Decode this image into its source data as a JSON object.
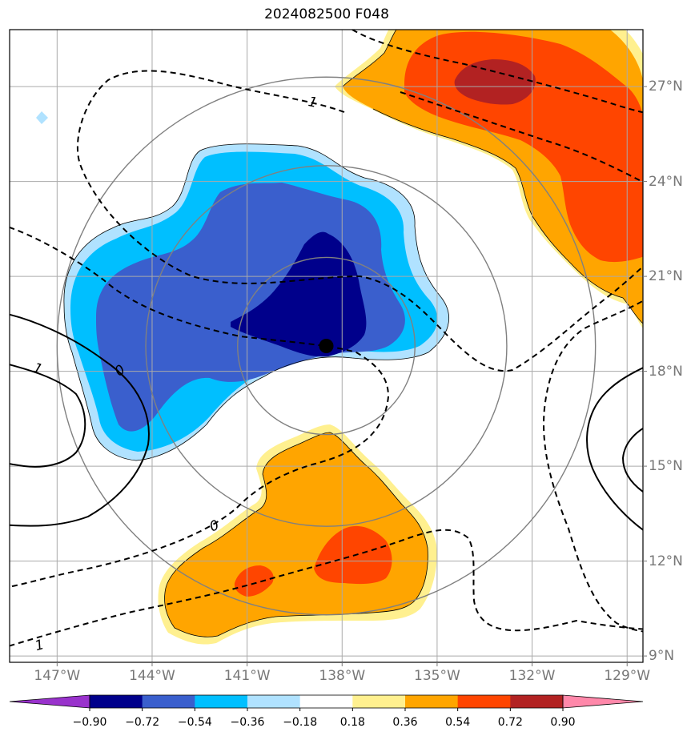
{
  "title": "2024082500 F048",
  "map": {
    "lon_range": [
      -148.5,
      -128.5
    ],
    "lat_range": [
      8.8,
      28.8
    ],
    "lon_ticks": [
      -147,
      -144,
      -141,
      -138,
      -135,
      -132,
      -129
    ],
    "lon_tick_labels": [
      "147°W",
      "144°W",
      "141°W",
      "138°W",
      "135°W",
      "132°W",
      "129°W"
    ],
    "lat_ticks": [
      9,
      12,
      15,
      18,
      21,
      24,
      27
    ],
    "lat_tick_labels": [
      "9°N",
      "12°N",
      "15°N",
      "18°N",
      "21°N",
      "24°N",
      "27°N"
    ],
    "grid": true,
    "storm_center": {
      "lon": -138.5,
      "lat": 18.8
    },
    "range_rings": {
      "center": {
        "lon": -138.5,
        "lat": 18.8
      },
      "radii_deg": [
        2.8,
        5.7,
        8.5
      ]
    },
    "contour_labels": [
      "1",
      "0",
      "1",
      "0",
      "1"
    ]
  },
  "colorbar": {
    "levels": [
      "−0.90",
      "−0.72",
      "−0.54",
      "−0.36",
      "−0.18",
      "0.18",
      "0.36",
      "0.54",
      "0.72",
      "0.90"
    ],
    "colors": [
      "#9932cc",
      "#00008b",
      "#3a5fcd",
      "#00bfff",
      "#b0e2ff",
      "#ffffff",
      "#fff08f",
      "#ffa500",
      "#ff4500",
      "#b22222",
      "#ff88aa"
    ]
  },
  "colors": {
    "grid": "#aaaaaa",
    "rings": "#808080",
    "ticks": "#777777"
  }
}
